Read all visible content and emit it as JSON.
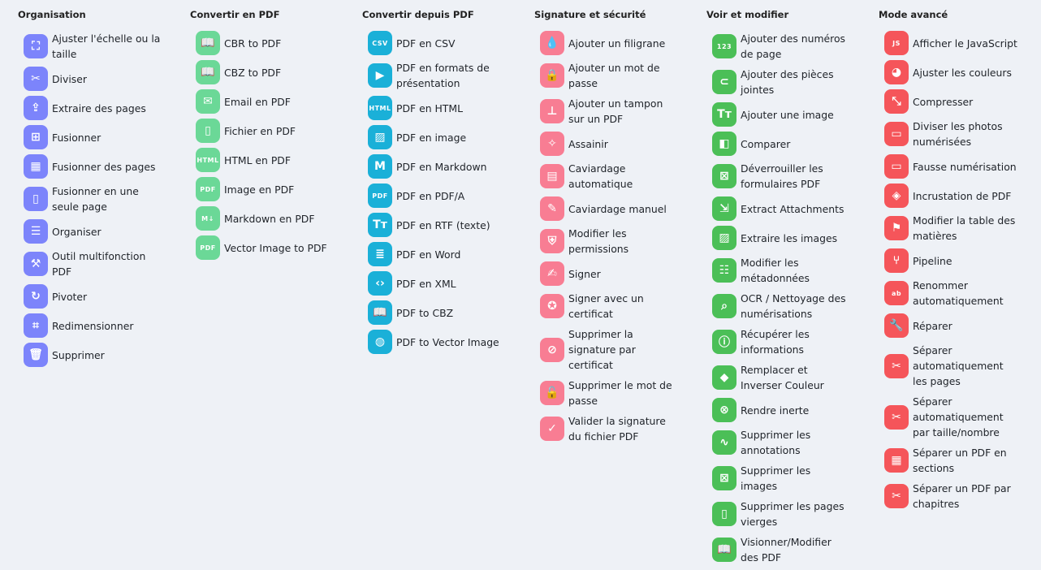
{
  "colors": {
    "organisation": "#7c84fb",
    "convert_to": "#6bd897",
    "convert_from": "#1ab0d8",
    "security": "#f87d93",
    "view": "#4bbf57",
    "advanced": "#f5555a",
    "background": "#eef1f6"
  },
  "columns": [
    {
      "title": "Organisation",
      "color": "#7c84fb",
      "items": [
        {
          "label": "Ajuster l'échelle ou la\ntaille",
          "icon": "⛶",
          "name": "scale-icon"
        },
        {
          "label": "Diviser",
          "icon": "✂",
          "name": "scissors-icon"
        },
        {
          "label": "Extraire des pages",
          "icon": "⇪",
          "name": "upload-icon"
        },
        {
          "label": "Fusionner",
          "icon": "⊞",
          "name": "merge-icon"
        },
        {
          "label": "Fusionner des pages",
          "icon": "▦",
          "name": "grid-icon"
        },
        {
          "label": "Fusionner en une\nseule page",
          "icon": "▯",
          "name": "page-icon"
        },
        {
          "label": "Organiser",
          "icon": "☰",
          "name": "list-icon"
        },
        {
          "label": "Outil multifonction\nPDF",
          "icon": "⚒",
          "name": "tools-icon"
        },
        {
          "label": "Pivoter",
          "icon": "↻",
          "name": "rotate-icon"
        },
        {
          "label": "Redimensionner",
          "icon": "⌗",
          "name": "crop-icon"
        },
        {
          "label": "Supprimer",
          "icon": "🗑",
          "name": "trash-icon"
        }
      ]
    },
    {
      "title": "Convertir en PDF",
      "color": "#6bd897",
      "items": [
        {
          "label": "CBR to PDF",
          "icon": "📖",
          "name": "book-icon"
        },
        {
          "label": "CBZ to PDF",
          "icon": "📖",
          "name": "book-icon"
        },
        {
          "label": "Email en PDF",
          "icon": "✉",
          "name": "email-icon"
        },
        {
          "label": "Fichier en PDF",
          "icon": "▯",
          "name": "file-icon"
        },
        {
          "label": "HTML en PDF",
          "icon": "HTML",
          "name": "html-icon",
          "small": true
        },
        {
          "label": "Image en PDF",
          "icon": "PDF",
          "name": "pdf-file-icon",
          "small": true
        },
        {
          "label": "Markdown en PDF",
          "icon": "M↓",
          "name": "markdown-icon",
          "small": true
        },
        {
          "label": "Vector Image to PDF",
          "icon": "PDF",
          "name": "pdf-file-icon",
          "small": true
        }
      ]
    },
    {
      "title": "Convertir depuis PDF",
      "color": "#1ab0d8",
      "items": [
        {
          "label": "PDF en CSV",
          "icon": "CSV",
          "name": "csv-icon",
          "small": true
        },
        {
          "label": "PDF en formats de\nprésentation",
          "icon": "▶",
          "name": "slideshow-icon"
        },
        {
          "label": "PDF en HTML",
          "icon": "HTML",
          "name": "html-icon",
          "small": true
        },
        {
          "label": "PDF en image",
          "icon": "▨",
          "name": "image-icon"
        },
        {
          "label": "PDF en Markdown",
          "icon": "M",
          "name": "markdown-icon"
        },
        {
          "label": "PDF en PDF/A",
          "icon": "PDF",
          "name": "pdfa-icon",
          "small": true
        },
        {
          "label": "PDF en RTF (texte)",
          "icon": "Tт",
          "name": "text-icon"
        },
        {
          "label": "PDF en Word",
          "icon": "≣",
          "name": "document-icon"
        },
        {
          "label": "PDF en XML",
          "icon": "‹›",
          "name": "code-icon"
        },
        {
          "label": "PDF to CBZ",
          "icon": "📖",
          "name": "book-icon"
        },
        {
          "label": "PDF to Vector Image",
          "icon": "◍",
          "name": "vector-icon"
        }
      ]
    },
    {
      "title": "Signature et sécurité",
      "color": "#f87d93",
      "items": [
        {
          "label": "Ajouter un filigrane",
          "icon": "💧",
          "name": "droplet-icon"
        },
        {
          "label": "Ajouter un mot de\npasse",
          "icon": "🔒",
          "name": "lock-icon"
        },
        {
          "label": "Ajouter un tampon\nsur un PDF",
          "icon": "⊥",
          "name": "stamp-icon"
        },
        {
          "label": "Assainir",
          "icon": "✧",
          "name": "sanitize-icon"
        },
        {
          "label": "Caviardage\nautomatique",
          "icon": "▤",
          "name": "redact-auto-icon"
        },
        {
          "label": "Caviardage manuel",
          "icon": "✎",
          "name": "redact-manual-icon"
        },
        {
          "label": "Modifier les\npermissions",
          "icon": "⛨",
          "name": "shield-icon"
        },
        {
          "label": "Signer",
          "icon": "✍",
          "name": "signature-icon"
        },
        {
          "label": "Signer avec un\ncertificat",
          "icon": "✪",
          "name": "certificate-icon"
        },
        {
          "label": "Supprimer la\nsignature par\ncertificat",
          "icon": "⊘",
          "name": "remove-cert-icon"
        },
        {
          "label": "Supprimer le mot de\npasse",
          "icon": "🔓",
          "name": "unlock-icon"
        },
        {
          "label": "Valider la signature\ndu fichier PDF",
          "icon": "✓",
          "name": "verified-icon"
        }
      ]
    },
    {
      "title": "Voir et modifier",
      "color": "#4bbf57",
      "items": [
        {
          "label": "Ajouter des numéros\nde page",
          "icon": "123",
          "name": "numbers-icon",
          "small": true
        },
        {
          "label": "Ajouter des pièces\njointes",
          "icon": "⊂",
          "name": "attachment-icon"
        },
        {
          "label": "Ajouter une image",
          "icon": "Tт",
          "name": "text-icon"
        },
        {
          "label": "Comparer",
          "icon": "◧",
          "name": "compare-icon"
        },
        {
          "label": "Déverrouiller les\nformulaires PDF",
          "icon": "⊠",
          "name": "unlock-form-icon"
        },
        {
          "label": "Extract Attachments",
          "icon": "⇲",
          "name": "extract-icon"
        },
        {
          "label": "Extraire les images",
          "icon": "▨",
          "name": "image-icon"
        },
        {
          "label": "Modifier les\nmétadonnées",
          "icon": "☷",
          "name": "metadata-icon"
        },
        {
          "label": "OCR / Nettoyage des\nnumérisations",
          "icon": "⌕",
          "name": "ocr-icon"
        },
        {
          "label": "Récupérer les\ninformations",
          "icon": "ⓘ",
          "name": "info-icon"
        },
        {
          "label": "Remplacer et\nInverser Couleur",
          "icon": "◆",
          "name": "paint-icon"
        },
        {
          "label": "Rendre inerte",
          "icon": "⊗",
          "name": "flatten-icon"
        },
        {
          "label": "Supprimer les\nannotations",
          "icon": "∿",
          "name": "annotation-icon"
        },
        {
          "label": "Supprimer les\nimages",
          "icon": "⊠",
          "name": "remove-image-icon"
        },
        {
          "label": "Supprimer les pages\nvierges",
          "icon": "▯",
          "name": "blank-page-icon"
        },
        {
          "label": "Visionner/Modifier\ndes PDF",
          "icon": "📖",
          "name": "reader-icon"
        }
      ]
    },
    {
      "title": "Mode avancé",
      "color": "#f5555a",
      "items": [
        {
          "label": "Afficher le JavaScript",
          "icon": "JS",
          "name": "javascript-icon",
          "small": true
        },
        {
          "label": "Ajuster les couleurs",
          "icon": "◕",
          "name": "palette-icon"
        },
        {
          "label": "Compresser",
          "icon": "⤡",
          "name": "compress-icon"
        },
        {
          "label": "Diviser les photos\nnumérisées",
          "icon": "▭",
          "name": "scanner-icon"
        },
        {
          "label": "Fausse numérisation",
          "icon": "▭",
          "name": "scanner-icon"
        },
        {
          "label": "Incrustation de PDF",
          "icon": "◈",
          "name": "layers-icon"
        },
        {
          "label": "Modifier la table des\nmatières",
          "icon": "⚑",
          "name": "bookmark-icon"
        },
        {
          "label": "Pipeline",
          "icon": "⑂",
          "name": "pipeline-icon"
        },
        {
          "label": "Renommer\nautomatiquement",
          "icon": "ab",
          "name": "rename-icon",
          "small": true
        },
        {
          "label": "Réparer",
          "icon": "🔧",
          "name": "wrench-icon"
        },
        {
          "label": "Séparer\nautomatiquement\nles pages",
          "icon": "✂",
          "name": "scissors-icon"
        },
        {
          "label": "Séparer\nautomatiquement\npar taille/nombre",
          "icon": "✂",
          "name": "scissors-icon"
        },
        {
          "label": "Séparer un PDF en\nsections",
          "icon": "▦",
          "name": "table-icon"
        },
        {
          "label": "Séparer un PDF par\nchapitres",
          "icon": "✂",
          "name": "scissors-icon"
        }
      ]
    }
  ]
}
